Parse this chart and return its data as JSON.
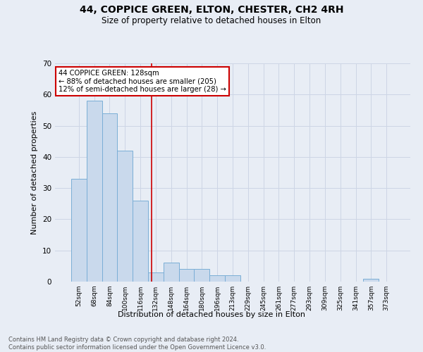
{
  "title1": "44, COPPICE GREEN, ELTON, CHESTER, CH2 4RH",
  "title2": "Size of property relative to detached houses in Elton",
  "xlabel": "Distribution of detached houses by size in Elton",
  "ylabel": "Number of detached properties",
  "footnote": "Contains HM Land Registry data © Crown copyright and database right 2024.\nContains public sector information licensed under the Open Government Licence v3.0.",
  "bar_labels": [
    "52sqm",
    "68sqm",
    "84sqm",
    "100sqm",
    "116sqm",
    "132sqm",
    "148sqm",
    "164sqm",
    "180sqm",
    "196sqm",
    "213sqm",
    "229sqm",
    "245sqm",
    "261sqm",
    "277sqm",
    "293sqm",
    "309sqm",
    "325sqm",
    "341sqm",
    "357sqm",
    "373sqm"
  ],
  "bar_values": [
    33,
    58,
    54,
    42,
    26,
    3,
    6,
    4,
    4,
    2,
    2,
    0,
    0,
    0,
    0,
    0,
    0,
    0,
    0,
    1,
    0
  ],
  "bar_color": "#c9d9ec",
  "bar_edge_color": "#7aaed6",
  "annotation_label": "44 COPPICE GREEN: 128sqm",
  "annotation_line1": "← 88% of detached houses are smaller (205)",
  "annotation_line2": "12% of semi-detached houses are larger (28) →",
  "annotation_box_color": "#ffffff",
  "annotation_box_edge": "#cc0000",
  "vline_color": "#cc0000",
  "ylim": [
    0,
    70
  ],
  "yticks": [
    0,
    10,
    20,
    30,
    40,
    50,
    60,
    70
  ],
  "grid_color": "#cdd5e5",
  "bg_color": "#e8edf5",
  "bar_width": 1.0,
  "title1_fontsize": 10,
  "title2_fontsize": 8.5,
  "footnote_fontsize": 6,
  "ylabel_fontsize": 8,
  "xlabel_fontsize": 8
}
